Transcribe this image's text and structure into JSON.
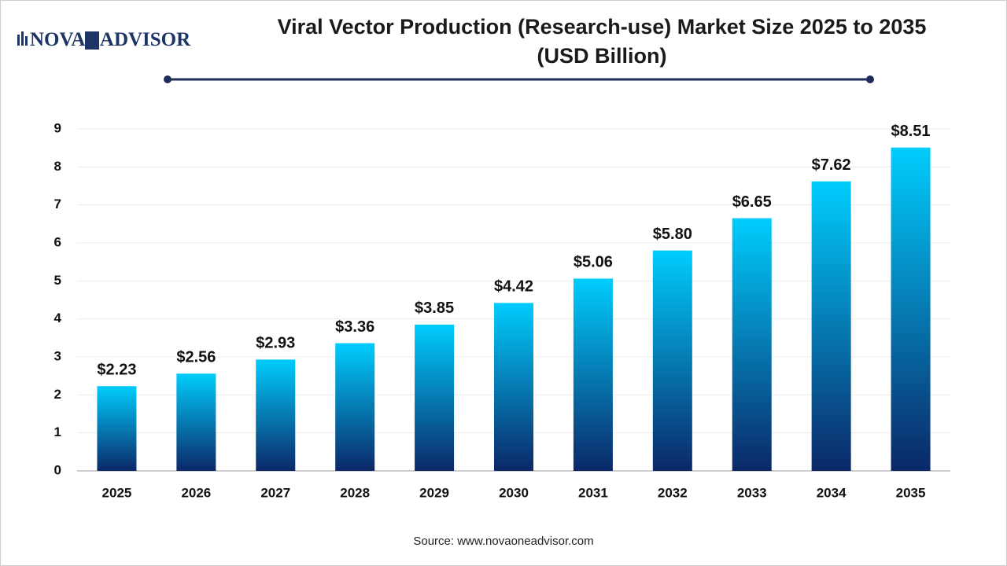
{
  "branding": {
    "left": "NOVA",
    "mark": "1",
    "right": "ADVISOR"
  },
  "chart_data": {
    "type": "bar",
    "title": "Viral Vector Production (Research-use) Market Size 2025 to 2035",
    "subtitle": "(USD Billion)",
    "categories": [
      "2025",
      "2026",
      "2027",
      "2028",
      "2029",
      "2030",
      "2031",
      "2032",
      "2033",
      "2034",
      "2035"
    ],
    "values": [
      2.23,
      2.56,
      2.93,
      3.36,
      3.85,
      4.42,
      5.06,
      5.8,
      6.65,
      7.62,
      8.51
    ],
    "value_labels": [
      "$2.23",
      "$2.56",
      "$2.93",
      "$3.36",
      "$3.85",
      "$4.42",
      "$5.06",
      "$5.80",
      "$6.65",
      "$7.62",
      "$8.51"
    ],
    "color_top": "#00cdfd",
    "color_bottom": "#0b2868",
    "ylim": [
      0,
      9
    ],
    "yticks": [
      0,
      1,
      2,
      3,
      4,
      5,
      6,
      7,
      8,
      9
    ],
    "grid": true,
    "source": "Source: www.novaoneadvisor.com"
  }
}
